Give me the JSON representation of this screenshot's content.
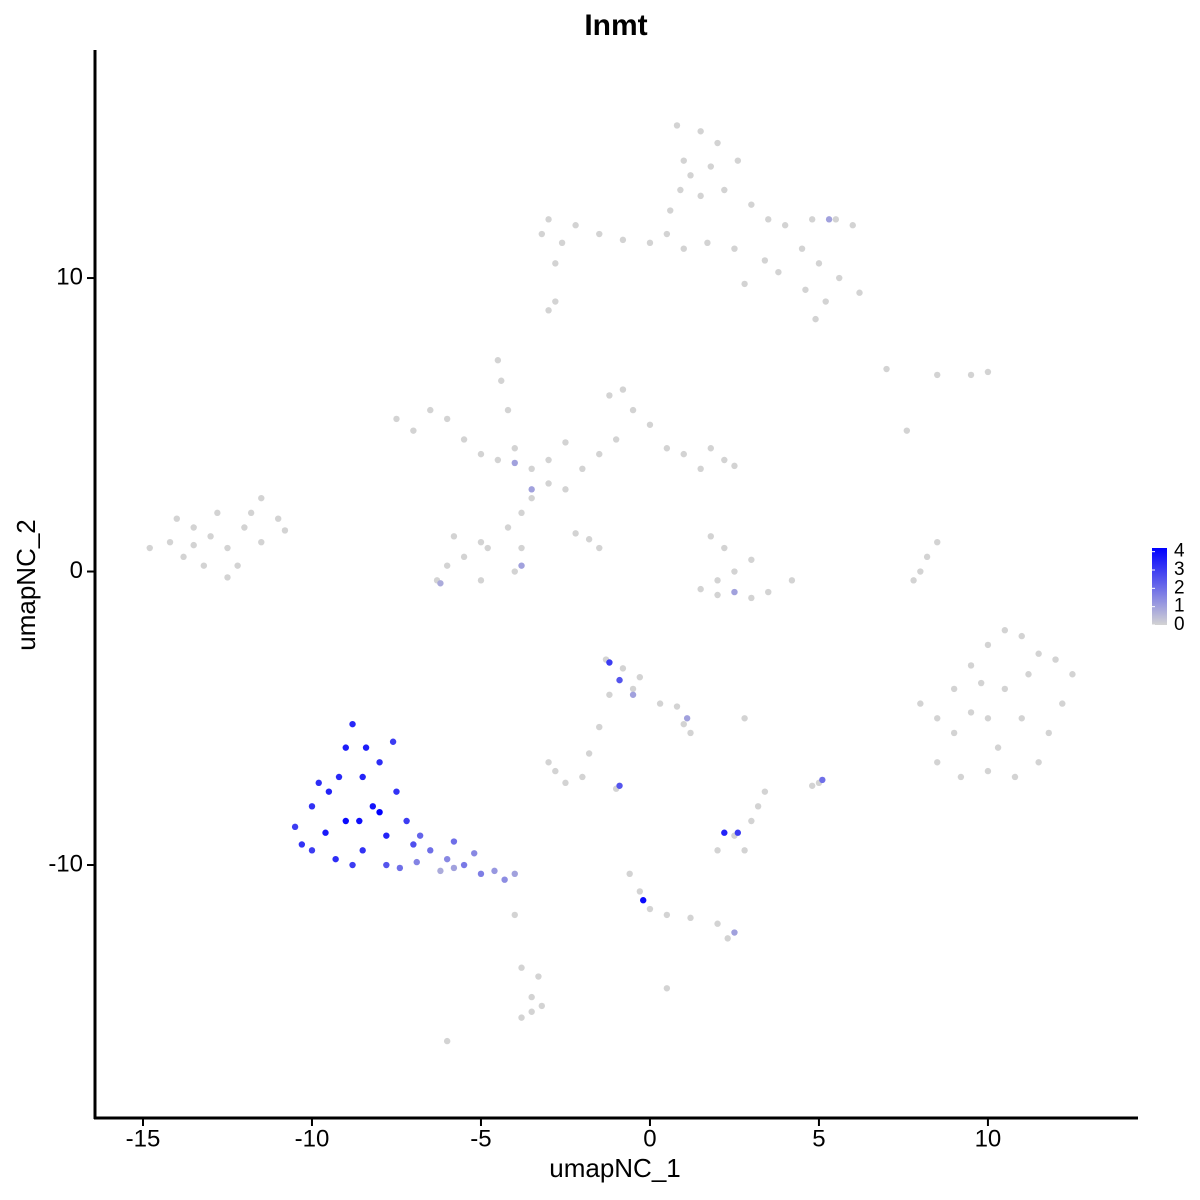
{
  "chart_data": {
    "type": "scatter",
    "title": "Inmt",
    "x_label": "umapNC_1",
    "y_label": "umapNC_2",
    "xlim": [
      -16.42,
      14.44
    ],
    "ylim": [
      -18.62,
      17.77
    ],
    "xticks": [
      -15,
      -10,
      -5,
      0,
      5,
      10
    ],
    "yticks": [
      -10,
      0,
      10
    ],
    "color_low": "#d3d3d3",
    "color_high": "#0000ff",
    "clim": [
      0,
      4.2
    ],
    "cticks": [
      0,
      1,
      2,
      3,
      4
    ],
    "points": [
      [
        0.8,
        15.2,
        0
      ],
      [
        1.5,
        15,
        0
      ],
      [
        2,
        14.6,
        0
      ],
      [
        1,
        14,
        0
      ],
      [
        1.8,
        13.8,
        0
      ],
      [
        2.6,
        14,
        0
      ],
      [
        0.9,
        13,
        0
      ],
      [
        1.5,
        12.8,
        0
      ],
      [
        2.2,
        13,
        0
      ],
      [
        3,
        12.5,
        0
      ],
      [
        3.5,
        12,
        0
      ],
      [
        4,
        11.8,
        0
      ],
      [
        4.8,
        12,
        0
      ],
      [
        5.5,
        12,
        0
      ],
      [
        6,
        11.8,
        0
      ],
      [
        4.5,
        11,
        0
      ],
      [
        5,
        10.5,
        0
      ],
      [
        5.6,
        10,
        0
      ],
      [
        6.2,
        9.5,
        0
      ],
      [
        5.2,
        9.2,
        0
      ],
      [
        4.6,
        9.6,
        0
      ],
      [
        3.4,
        10.6,
        0
      ],
      [
        2.5,
        11,
        0
      ],
      [
        1.7,
        11.2,
        0
      ],
      [
        1,
        11,
        0
      ],
      [
        0.5,
        11.5,
        0
      ],
      [
        0,
        11.2,
        0
      ],
      [
        -0.8,
        11.3,
        0
      ],
      [
        -1.5,
        11.5,
        0
      ],
      [
        -2.2,
        11.8,
        0
      ],
      [
        -3,
        12,
        0
      ],
      [
        -3.2,
        11.5,
        0
      ],
      [
        -2.6,
        11.2,
        0
      ],
      [
        -2.8,
        10.5,
        0
      ],
      [
        0.6,
        12.3,
        0
      ],
      [
        1.2,
        13.5,
        0
      ],
      [
        3.8,
        10.2,
        0
      ],
      [
        2.8,
        9.8,
        0
      ],
      [
        4.9,
        8.6,
        0
      ],
      [
        -3,
        8.9,
        0
      ],
      [
        -2.8,
        9.2,
        0
      ],
      [
        -6.5,
        5.5,
        0
      ],
      [
        -7.5,
        5.2,
        0
      ],
      [
        -7,
        4.8,
        0
      ],
      [
        -6,
        5.2,
        0
      ],
      [
        -5.5,
        4.5,
        0
      ],
      [
        -5,
        4,
        0
      ],
      [
        -4.5,
        3.8,
        0
      ],
      [
        -4,
        4.2,
        0
      ],
      [
        -3.5,
        3.5,
        0
      ],
      [
        -3,
        3,
        0
      ],
      [
        -2.5,
        2.8,
        0
      ],
      [
        -2,
        3.5,
        0
      ],
      [
        -1.5,
        4,
        0
      ],
      [
        -1,
        4.5,
        0
      ],
      [
        -0.5,
        5.5,
        0
      ],
      [
        -1.2,
        6,
        0
      ],
      [
        -0.8,
        6.2,
        0
      ],
      [
        0,
        5,
        0
      ],
      [
        0.5,
        4.2,
        0
      ],
      [
        1,
        4,
        0
      ],
      [
        1.8,
        4.2,
        0
      ],
      [
        2.2,
        3.8,
        0
      ],
      [
        2.5,
        3.6,
        0
      ],
      [
        1.5,
        3.5,
        0
      ],
      [
        -4.5,
        7.2,
        0
      ],
      [
        -4.4,
        6.5,
        0
      ],
      [
        -4.2,
        5.5,
        0
      ],
      [
        -3.8,
        2,
        0
      ],
      [
        -4.2,
        1.5,
        0
      ],
      [
        -5,
        1,
        0
      ],
      [
        -5.5,
        0.5,
        0
      ],
      [
        -6,
        0.2,
        0
      ],
      [
        -6.3,
        -0.3,
        0
      ],
      [
        -5,
        -0.3,
        0
      ],
      [
        -4,
        0,
        0
      ],
      [
        -3.8,
        0.8,
        0
      ],
      [
        -4.8,
        0.8,
        0
      ],
      [
        -5.8,
        1.2,
        0
      ],
      [
        -3.5,
        2.5,
        0
      ],
      [
        -2.2,
        1.3,
        0
      ],
      [
        -1.5,
        0.8,
        0
      ],
      [
        -1.8,
        1.1,
        0
      ],
      [
        -3,
        3.8,
        0
      ],
      [
        -2.5,
        4.4,
        0
      ],
      [
        -14.8,
        0.8,
        0
      ],
      [
        -14.2,
        1,
        0
      ],
      [
        -13.8,
        0.5,
        0
      ],
      [
        -13.5,
        1.5,
        0
      ],
      [
        -13,
        1.2,
        0
      ],
      [
        -12.5,
        0.8,
        0
      ],
      [
        -12,
        1.5,
        0
      ],
      [
        -11.8,
        2,
        0
      ],
      [
        -11.5,
        2.5,
        0
      ],
      [
        -11,
        1.8,
        0
      ],
      [
        -10.8,
        1.4,
        0
      ],
      [
        -12.8,
        2,
        0
      ],
      [
        -13.2,
        0.2,
        0
      ],
      [
        -12.2,
        0.2,
        0
      ],
      [
        -14,
        1.8,
        0
      ],
      [
        -12.5,
        -0.2,
        0
      ],
      [
        -11.5,
        1,
        0
      ],
      [
        -13.5,
        0.9,
        0
      ],
      [
        1.8,
        1.2,
        0
      ],
      [
        2.2,
        0.8,
        0
      ],
      [
        3,
        0.4,
        0
      ],
      [
        2.5,
        0,
        0
      ],
      [
        2,
        -0.3,
        0
      ],
      [
        1.5,
        -0.6,
        0
      ],
      [
        2,
        -0.8,
        0
      ],
      [
        3,
        -0.9,
        0
      ],
      [
        3.5,
        -0.7,
        0
      ],
      [
        4.2,
        -0.3,
        0
      ],
      [
        8.5,
        1,
        0
      ],
      [
        8.2,
        0.5,
        0
      ],
      [
        8,
        0,
        0
      ],
      [
        7.8,
        -0.3,
        0
      ],
      [
        7,
        6.9,
        0
      ],
      [
        8.5,
        6.7,
        0
      ],
      [
        9.5,
        6.7,
        0
      ],
      [
        10,
        6.8,
        0
      ],
      [
        7.6,
        4.8,
        0
      ],
      [
        8,
        -4.5,
        0
      ],
      [
        8.5,
        -5,
        0
      ],
      [
        9,
        -4,
        0
      ],
      [
        9.5,
        -3.2,
        0
      ],
      [
        10,
        -2.5,
        0
      ],
      [
        10.5,
        -2,
        0
      ],
      [
        11,
        -2.2,
        0
      ],
      [
        11.5,
        -2.8,
        0
      ],
      [
        12,
        -3,
        0
      ],
      [
        12.5,
        -3.5,
        0
      ],
      [
        12.2,
        -4.5,
        0
      ],
      [
        11.8,
        -5.5,
        0
      ],
      [
        11.5,
        -6.5,
        0
      ],
      [
        10.8,
        -7,
        0
      ],
      [
        10,
        -6.8,
        0
      ],
      [
        9.2,
        -7,
        0
      ],
      [
        8.5,
        -6.5,
        0
      ],
      [
        9,
        -5.5,
        0
      ],
      [
        10,
        -5,
        0
      ],
      [
        10.5,
        -4,
        0
      ],
      [
        11,
        -5,
        0
      ],
      [
        11.2,
        -3.5,
        0
      ],
      [
        9.8,
        -3.8,
        0
      ],
      [
        10.3,
        -6,
        0
      ],
      [
        9.5,
        -4.8,
        0
      ],
      [
        -1.3,
        -3,
        0
      ],
      [
        -0.8,
        -3.3,
        0
      ],
      [
        -0.5,
        -4,
        0
      ],
      [
        -1.2,
        -4.2,
        0
      ],
      [
        -0.3,
        -3.6,
        0
      ],
      [
        0.3,
        -4.5,
        0
      ],
      [
        0.8,
        -4.6,
        0
      ],
      [
        1,
        -5.2,
        0
      ],
      [
        1.2,
        -5.5,
        0
      ],
      [
        -1.5,
        -5.3,
        0
      ],
      [
        -1.8,
        -6.2,
        0
      ],
      [
        -2,
        -7,
        0
      ],
      [
        -2.8,
        -6.8,
        0
      ],
      [
        -2.5,
        -7.2,
        0
      ],
      [
        -3,
        -6.5,
        0
      ],
      [
        -0.6,
        -10.3,
        0
      ],
      [
        -0.3,
        -10.9,
        0
      ],
      [
        0,
        -11.5,
        0
      ],
      [
        0.5,
        -11.7,
        0
      ],
      [
        1.2,
        -11.8,
        0
      ],
      [
        2,
        -12,
        0
      ],
      [
        2.3,
        -12.5,
        0
      ],
      [
        2.5,
        -9,
        0
      ],
      [
        2.8,
        -9.5,
        0
      ],
      [
        2,
        -9.5,
        0
      ],
      [
        3,
        -8.5,
        0
      ],
      [
        3.4,
        -7.5,
        0
      ],
      [
        3.2,
        -8,
        0
      ],
      [
        2.8,
        -5,
        0
      ],
      [
        5,
        -7.2,
        0
      ],
      [
        4.8,
        -7.3,
        0
      ],
      [
        -3.5,
        -14.5,
        0
      ],
      [
        -3.5,
        -15,
        0
      ],
      [
        -3.2,
        -14.8,
        0
      ],
      [
        -3.8,
        -15.2,
        0
      ],
      [
        -3.3,
        -13.8,
        0
      ],
      [
        -3.8,
        -13.5,
        0
      ],
      [
        -6,
        -16,
        0
      ],
      [
        -4,
        -11.7,
        0
      ],
      [
        0.5,
        -14.2,
        0
      ],
      [
        -1,
        -7.4,
        0
      ],
      [
        5.3,
        12,
        1
      ],
      [
        -4,
        3.7,
        1
      ],
      [
        -3.5,
        2.8,
        1
      ],
      [
        -6.2,
        -0.4,
        0.8
      ],
      [
        -3.8,
        0.2,
        1
      ],
      [
        2.5,
        -0.7,
        1
      ],
      [
        -0.5,
        -4.2,
        1
      ],
      [
        1.1,
        -5,
        1
      ],
      [
        2.5,
        -12.3,
        1
      ],
      [
        -1.2,
        -3.1,
        3
      ],
      [
        -0.9,
        -3.7,
        2.5
      ],
      [
        -0.9,
        -7.3,
        2.5
      ],
      [
        -0.2,
        -11.2,
        4
      ],
      [
        2.2,
        -8.9,
        3.5
      ],
      [
        2.6,
        -8.9,
        3
      ],
      [
        5.1,
        -7.1,
        2
      ],
      [
        -6.2,
        -10.2,
        0.8
      ],
      [
        -5.8,
        -10.1,
        1
      ],
      [
        -4,
        -10.3,
        1
      ],
      [
        -4.6,
        -10.2,
        1.2
      ],
      [
        -4.3,
        -10.5,
        1.4
      ],
      [
        -6,
        -9.8,
        1.5
      ],
      [
        -5.2,
        -9.6,
        1.5
      ],
      [
        -6.9,
        -9.9,
        1.6
      ],
      [
        -5,
        -10.3,
        1.7
      ],
      [
        -5.5,
        -10,
        1.8
      ],
      [
        -6.5,
        -9.5,
        2
      ],
      [
        -5.8,
        -9.2,
        2
      ],
      [
        -7.4,
        -10.1,
        2
      ],
      [
        -6.8,
        -9,
        2.2
      ],
      [
        -7.8,
        -10,
        2.5
      ],
      [
        -7,
        -9.3,
        2.6
      ],
      [
        -10.5,
        -8.7,
        3
      ],
      [
        -10,
        -9.5,
        3
      ],
      [
        -7.6,
        -5.8,
        3
      ],
      [
        -7.2,
        -8.5,
        3
      ],
      [
        -8.8,
        -10,
        3
      ],
      [
        -10,
        -8,
        3.2
      ],
      [
        -8.5,
        -9.5,
        3.2
      ],
      [
        -7.5,
        -7.5,
        3.2
      ],
      [
        -10.3,
        -9.3,
        3.2
      ],
      [
        -9.3,
        -9.8,
        3.3
      ],
      [
        -8,
        -6.5,
        3.3
      ],
      [
        -9.8,
        -7.2,
        3.3
      ],
      [
        -8.8,
        -5.2,
        3.4
      ],
      [
        -9.2,
        -7,
        3.4
      ],
      [
        -9.5,
        -7.5,
        3.5
      ],
      [
        -8.5,
        -7,
        3.5
      ],
      [
        -7.8,
        -9,
        3.5
      ],
      [
        -9,
        -6,
        3.6
      ],
      [
        -8.4,
        -6,
        3.6
      ],
      [
        -9.6,
        -8.9,
        3.7
      ],
      [
        -8.2,
        -8,
        3.8
      ],
      [
        -8.6,
        -8.5,
        3.9
      ],
      [
        -9,
        -8.5,
        4
      ],
      [
        -8,
        -8.2,
        4.2
      ]
    ]
  }
}
